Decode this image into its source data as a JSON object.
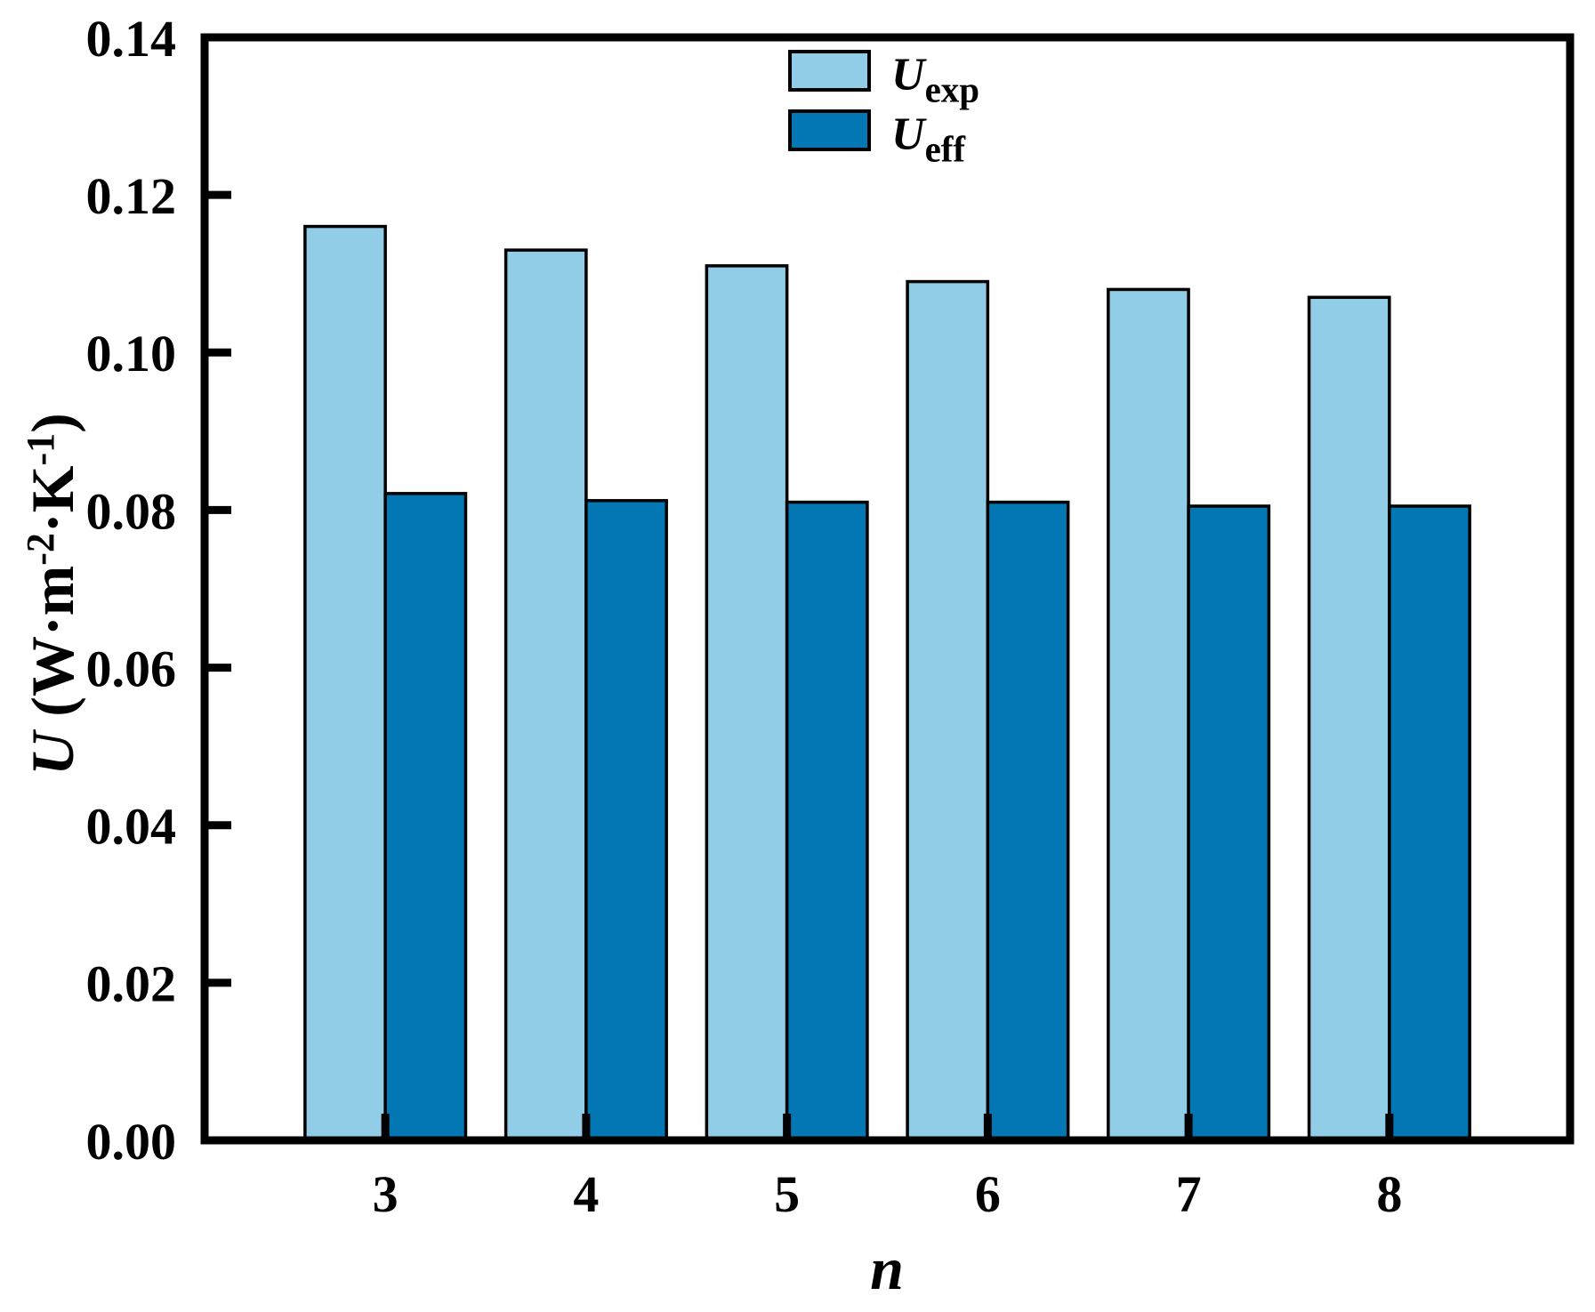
{
  "chart_data": {
    "type": "bar",
    "title": "",
    "xlabel": "n",
    "ylabel_text": "U (W·m⁻²·K⁻¹)",
    "ylabel_segments": [
      {
        "t": "U ",
        "italic": true
      },
      {
        "t": "(W·m"
      },
      {
        "t": "-2",
        "sup": true
      },
      {
        "t": "·K"
      },
      {
        "t": "-1",
        "sup": true
      },
      {
        "t": ")"
      }
    ],
    "x": [
      3,
      4,
      5,
      6,
      7,
      8
    ],
    "categories": [
      "3",
      "4",
      "5",
      "6",
      "7",
      "8"
    ],
    "series": [
      {
        "name": "U_exp",
        "legend_main": "U",
        "legend_sub": "exp",
        "color": "#92CDE8",
        "values": [
          0.116,
          0.113,
          0.111,
          0.109,
          0.108,
          0.107
        ]
      },
      {
        "name": "U_eff",
        "legend_main": "U",
        "legend_sub": "eff",
        "color": "#0377B4",
        "values": [
          0.0821,
          0.0812,
          0.081,
          0.081,
          0.0805,
          0.0805
        ]
      }
    ],
    "ylim": [
      0,
      0.14
    ],
    "ytick_step": 0.02,
    "ytick_decimals": 2,
    "xlim": [
      2.1,
      8.9
    ],
    "bar_width_axis_units": 0.4,
    "grid": false,
    "tick_direction": "in",
    "legend_position": "top-center-inside",
    "axis_color": "#000000",
    "bar_outline_color": "#000000",
    "background_color": "#FFFFFF"
  }
}
